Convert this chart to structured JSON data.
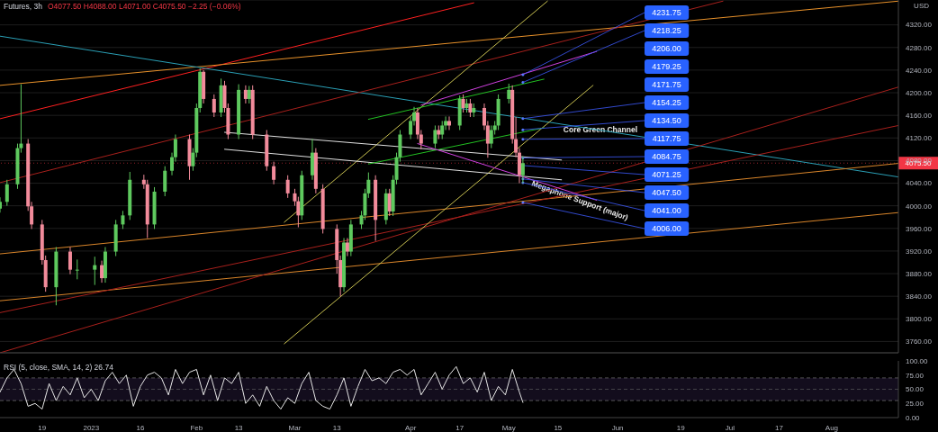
{
  "chart_data": [
    {
      "type": "candlestick",
      "title": "Futures, 3h",
      "subtitle": "O4077.50 H4088.00 L4071.00 C4075.50 −2.25 (−0.06%)",
      "ylabel": "USD",
      "tick_labels": "y",
      "grid": "y",
      "xlim": [
        "2022-12-07",
        "2023-08-20"
      ],
      "ylim": [
        3740,
        4364
      ],
      "yticks": [
        {
          "value": 3760,
          "label": "3760.00"
        },
        {
          "value": 3800,
          "label": "3800.00"
        },
        {
          "value": 3840,
          "label": "3840.00"
        },
        {
          "value": 3880,
          "label": "3880.00"
        },
        {
          "value": 3920,
          "label": "3920.00"
        },
        {
          "value": 3960,
          "label": "3960.00"
        },
        {
          "value": 4000,
          "label": "4000.00"
        },
        {
          "value": 4040,
          "label": "4040.00"
        },
        {
          "value": 4080,
          "label": "4080.00"
        },
        {
          "value": 4120,
          "label": "4120.00"
        },
        {
          "value": 4160,
          "label": "4160.00"
        },
        {
          "value": 4200,
          "label": "4200.00"
        },
        {
          "value": 4240,
          "label": "4240.00"
        },
        {
          "value": 4280,
          "label": "4280.00"
        },
        {
          "value": 4320,
          "label": "4320.00"
        }
      ],
      "x": [
        "2022-12-07",
        "2022-12-09",
        "2022-12-12",
        "2022-12-13",
        "2022-12-15",
        "2022-12-16",
        "2022-12-19",
        "2022-12-20",
        "2022-12-23",
        "2022-12-27",
        "2022-12-29",
        "2023-01-03",
        "2023-01-05",
        "2023-01-06",
        "2023-01-09",
        "2023-01-11",
        "2023-01-13",
        "2023-01-17",
        "2023-01-18",
        "2023-01-20",
        "2023-01-23",
        "2023-01-25",
        "2023-01-26",
        "2023-01-30",
        "2023-01-31",
        "2023-02-01",
        "2023-02-02",
        "2023-02-03",
        "2023-02-06",
        "2023-02-08",
        "2023-02-09",
        "2023-02-10",
        "2023-02-13",
        "2023-02-15",
        "2023-02-16",
        "2023-02-17",
        "2023-02-21",
        "2023-02-23",
        "2023-02-27",
        "2023-03-01",
        "2023-03-02",
        "2023-03-03",
        "2023-03-06",
        "2023-03-07",
        "2023-03-09",
        "2023-03-13",
        "2023-03-14",
        "2023-03-15",
        "2023-03-16",
        "2023-03-17",
        "2023-03-20",
        "2023-03-21",
        "2023-03-22",
        "2023-03-24",
        "2023-03-27",
        "2023-03-28",
        "2023-03-29",
        "2023-03-30",
        "2023-03-31",
        "2023-04-03",
        "2023-04-04",
        "2023-04-05",
        "2023-04-06",
        "2023-04-10",
        "2023-04-11",
        "2023-04-12",
        "2023-04-13",
        "2023-04-14",
        "2023-04-17",
        "2023-04-18",
        "2023-04-19",
        "2023-04-20",
        "2023-04-21",
        "2023-04-24",
        "2023-04-25",
        "2023-04-26",
        "2023-04-27",
        "2023-04-28",
        "2023-05-01",
        "2023-05-02",
        "2023-05-03",
        "2023-05-04",
        "2023-05-05"
      ],
      "ohlc": [
        [
          3995,
          4015,
          3988,
          4007
        ],
        [
          4007,
          4046,
          4000,
          4038
        ],
        [
          4038,
          4110,
          4030,
          4102
        ],
        [
          4102,
          4215,
          4094,
          4110
        ],
        [
          4110,
          4118,
          3991,
          3999
        ],
        [
          3999,
          4007,
          3959,
          3967
        ],
        [
          3967,
          3975,
          3896,
          3904
        ],
        [
          3904,
          3912,
          3848,
          3856
        ],
        [
          3856,
          3927,
          3824,
          3919
        ],
        [
          3919,
          3927,
          3879,
          3887
        ],
        [
          3887,
          3905,
          3870,
          3887
        ],
        [
          3887,
          3910,
          3860,
          3895
        ],
        [
          3895,
          3903,
          3864,
          3872
        ],
        [
          3872,
          3927,
          3864,
          3919
        ],
        [
          3919,
          3975,
          3911,
          3967
        ],
        [
          3967,
          3991,
          3959,
          3983
        ],
        [
          3983,
          4060,
          3975,
          4046
        ],
        [
          4046,
          4055,
          4030,
          4038
        ],
        [
          4038,
          4046,
          3943,
          3967
        ],
        [
          3967,
          4033,
          3959,
          4025
        ],
        [
          4025,
          4070,
          4017,
          4062
        ],
        [
          4062,
          4094,
          4054,
          4086
        ],
        [
          4086,
          4126,
          4078,
          4118
        ],
        [
          4118,
          4126,
          4046,
          4070
        ],
        [
          4070,
          4102,
          4062,
          4094
        ],
        [
          4094,
          4181,
          4086,
          4173
        ],
        [
          4173,
          4243,
          4165,
          4237
        ],
        [
          4237,
          4240,
          4181,
          4189
        ],
        [
          4189,
          4197,
          4157,
          4165
        ],
        [
          4165,
          4225,
          4157,
          4213
        ],
        [
          4213,
          4221,
          4165,
          4173
        ],
        [
          4173,
          4181,
          4118,
          4126
        ],
        [
          4126,
          4215,
          4118,
          4205
        ],
        [
          4205,
          4213,
          4181,
          4189
        ],
        [
          4189,
          4212,
          4181,
          4205
        ],
        [
          4205,
          4213,
          4118,
          4126
        ],
        [
          4126,
          4134,
          4062,
          4070
        ],
        [
          4070,
          4078,
          4038,
          4046
        ],
        [
          4046,
          4054,
          4014,
          4022
        ],
        [
          4022,
          4030,
          4000,
          4008
        ],
        [
          4008,
          4016,
          3962,
          3983
        ],
        [
          3983,
          4062,
          3975,
          4054
        ],
        [
          4054,
          4118,
          4046,
          4094
        ],
        [
          4094,
          4102,
          4022,
          4030
        ],
        [
          4030,
          4038,
          3951,
          3959
        ],
        [
          3959,
          3967,
          3880,
          3904
        ],
        [
          3904,
          3912,
          3840,
          3856
        ],
        [
          3856,
          3943,
          3848,
          3935
        ],
        [
          3935,
          3943,
          3911,
          3919
        ],
        [
          3919,
          3975,
          3911,
          3967
        ],
        [
          3967,
          3991,
          3959,
          3983
        ],
        [
          3983,
          4030,
          3975,
          4022
        ],
        [
          4022,
          4059,
          4014,
          4046
        ],
        [
          4046,
          4054,
          3938,
          3975
        ],
        [
          3975,
          4030,
          3967,
          4022
        ],
        [
          4022,
          4030,
          3982,
          3990
        ],
        [
          3990,
          4054,
          3982,
          4046
        ],
        [
          4046,
          4094,
          4038,
          4086
        ],
        [
          4086,
          4134,
          4078,
          4126
        ],
        [
          4126,
          4158,
          4118,
          4150
        ],
        [
          4150,
          4175,
          4142,
          4165
        ],
        [
          4165,
          4173,
          4118,
          4126
        ],
        [
          4126,
          4134,
          4100,
          4110
        ],
        [
          4110,
          4142,
          4102,
          4134
        ],
        [
          4134,
          4142,
          4118,
          4126
        ],
        [
          4126,
          4150,
          4118,
          4142
        ],
        [
          4142,
          4158,
          4134,
          4150
        ],
        [
          4150,
          4158,
          4134,
          4142
        ],
        [
          4142,
          4195,
          4134,
          4189
        ],
        [
          4189,
          4197,
          4165,
          4173
        ],
        [
          4173,
          4189,
          4165,
          4181
        ],
        [
          4181,
          4189,
          4157,
          4165
        ],
        [
          4165,
          4181,
          4157,
          4173
        ],
        [
          4173,
          4181,
          4134,
          4142
        ],
        [
          4142,
          4150,
          4085,
          4110
        ],
        [
          4110,
          4142,
          4102,
          4134
        ],
        [
          4134,
          4150,
          4126,
          4142
        ],
        [
          4142,
          4197,
          4134,
          4189
        ],
        [
          4189,
          4216,
          4181,
          4205
        ],
        [
          4205,
          4213,
          4110,
          4118
        ],
        [
          4118,
          4157,
          4086,
          4094
        ],
        [
          4094,
          4102,
          4040,
          4054
        ],
        [
          4054,
          4088,
          4040,
          4075.5
        ]
      ],
      "colors": [
        "#5ec95e",
        "#5ec95e",
        "#5ec95e",
        "#5ec95e",
        "#f28b9b",
        "#f28b9b",
        "#f28b9b",
        "#f28b9b",
        "#5ec95e",
        "#f28b9b",
        "#5ec95e",
        "#5ec95e",
        "#f28b9b",
        "#5ec95e",
        "#5ec95e",
        "#5ec95e",
        "#5ec95e",
        "#f28b9b",
        "#f28b9b",
        "#5ec95e",
        "#5ec95e",
        "#5ec95e",
        "#5ec95e",
        "#f28b9b",
        "#5ec95e",
        "#5ec95e",
        "#5ec95e",
        "#f28b9b",
        "#f28b9b",
        "#5ec95e",
        "#f28b9b",
        "#f28b9b",
        "#5ec95e",
        "#f28b9b",
        "#5ec95e",
        "#f28b9b",
        "#f28b9b",
        "#f28b9b",
        "#f28b9b",
        "#f28b9b",
        "#f28b9b",
        "#5ec95e",
        "#5ec95e",
        "#f28b9b",
        "#f28b9b",
        "#f28b9b",
        "#f28b9b",
        "#5ec95e",
        "#f28b9b",
        "#5ec95e",
        "#5ec95e",
        "#5ec95e",
        "#5ec95e",
        "#f28b9b",
        "#5ec95e",
        "#f28b9b",
        "#5ec95e",
        "#5ec95e",
        "#5ec95e",
        "#5ec95e",
        "#5ec95e",
        "#f28b9b",
        "#f28b9b",
        "#5ec95e",
        "#f28b9b",
        "#5ec95e",
        "#5ec95e",
        "#f28b9b",
        "#5ec95e",
        "#f28b9b",
        "#5ec95e",
        "#f28b9b",
        "#5ec95e",
        "#f28b9b",
        "#f28b9b",
        "#5ec95e",
        "#5ec95e",
        "#5ec95e",
        "#5ec95e",
        "#f28b9b",
        "#f28b9b",
        "#f28b9b",
        "#5ec95e"
      ],
      "series": [
        {
          "type": "line",
          "color": "#ff2020",
          "x": [
            "2022-12-07",
            "2023-04-21"
          ],
          "values": [
            4154,
            4359
          ]
        },
        {
          "type": "line",
          "color": "#e8912a",
          "x": [
            "2022-12-07",
            "2023-08-20"
          ],
          "values": [
            4213,
            4362
          ]
        },
        {
          "type": "line",
          "color": "#2a9fb5",
          "x": [
            "2022-12-07",
            "2023-08-20"
          ],
          "values": [
            4300,
            4051
          ]
        },
        {
          "type": "line",
          "color": "#d9852a",
          "x": [
            "2022-12-07",
            "2023-08-20"
          ],
          "values": [
            3915,
            4075
          ]
        },
        {
          "type": "line",
          "color": "#d9852a",
          "x": [
            "2022-12-07",
            "2023-08-20"
          ],
          "values": [
            3832,
            3988
          ]
        },
        {
          "type": "line",
          "color": "#a8201c",
          "x": [
            "2022-12-07",
            "2023-07-01"
          ],
          "values": [
            4041,
            4362
          ]
        },
        {
          "type": "line",
          "color": "#a8201c",
          "x": [
            "2022-12-07",
            "2023-08-20"
          ],
          "values": [
            3811,
            4142
          ]
        },
        {
          "type": "line",
          "color": "#a8201c",
          "x": [
            "2022-12-07",
            "2023-08-20"
          ],
          "values": [
            3740,
            4210
          ]
        },
        {
          "type": "line",
          "color": "#c8c050",
          "x": [
            "2023-02-26",
            "2023-05-25"
          ],
          "values": [
            3756,
            4213
          ]
        },
        {
          "type": "line",
          "color": "#c8c050",
          "x": [
            "2023-02-26",
            "2023-05-12"
          ],
          "values": [
            3971,
            4362
          ]
        },
        {
          "type": "line",
          "color": "#e0e0e0",
          "x": [
            "2023-02-09",
            "2023-05-16"
          ],
          "values": [
            4130,
            4081
          ]
        },
        {
          "type": "line",
          "color": "#e0e0e0",
          "x": [
            "2023-02-09",
            "2023-05-16"
          ],
          "values": [
            4100,
            4046
          ]
        },
        {
          "type": "line",
          "color": "#22c022",
          "x": [
            "2023-03-22",
            "2023-05-11"
          ],
          "values": [
            4153,
            4224
          ]
        },
        {
          "type": "line",
          "color": "#22c022",
          "x": [
            "2023-03-22",
            "2023-05-11"
          ],
          "values": [
            4074,
            4138
          ]
        },
        {
          "type": "line",
          "color": "#d040e0",
          "x": [
            "2023-04-06",
            "2023-05-26"
          ],
          "values": [
            4178,
            4273
          ]
        },
        {
          "type": "line",
          "color": "#d040e0",
          "x": [
            "2023-04-05",
            "2023-05-26"
          ],
          "values": [
            4110,
            4010
          ]
        }
      ],
      "ref_lines": [
        {
          "axis": "y",
          "value": 4075.5,
          "label": "4075.50",
          "color": "#f23645",
          "line_style": "dotted"
        }
      ],
      "annotations": [
        {
          "text": "4231.75",
          "x": "2023-05-05",
          "y": 4231.75
        },
        {
          "text": "4218.25",
          "x": "2023-05-05",
          "y": 4218.25
        },
        "4206.00",
        "4179.25",
        "4171.75",
        {
          "text": "4154.25",
          "x": "2023-05-05",
          "y": 4154.25
        },
        {
          "text": "4134.50",
          "x": "2023-05-05",
          "y": 4134.5
        },
        {
          "text": "4117.75",
          "x": "2023-05-05",
          "y": 4117.75
        },
        {
          "text": "4084.75",
          "x": "2023-05-05",
          "y": 4084.75
        },
        {
          "text": "4071.25",
          "x": "2023-05-05",
          "y": 4071.25
        },
        {
          "text": "4047.50",
          "x": "2023-05-05",
          "y": 4047.5
        },
        {
          "text": "4041.00",
          "x": "2023-05-05",
          "y": 4041
        },
        {
          "text": "4006.00",
          "x": "2023-05-05",
          "y": 4006
        },
        "Core Green Channel",
        "Megaphone Support (major)"
      ]
    },
    {
      "type": "line",
      "title": "RSI (5, close, SMA, 14, 2) 26.74",
      "color": "#e6e6e6",
      "xlim": [
        "2022-12-07",
        "2023-08-20"
      ],
      "ylim": [
        0,
        100
      ],
      "yticks": [
        {
          "value": 0,
          "label": "0.00"
        },
        {
          "value": 25,
          "label": "25.00"
        },
        {
          "value": 50,
          "label": "50.00"
        },
        {
          "value": 75,
          "label": "75.00"
        },
        {
          "value": 100,
          "label": "100.00"
        }
      ],
      "xticks": [
        {
          "value": "2022-12-19",
          "label": "19"
        },
        {
          "value": "2023-01-02",
          "label": "2023"
        },
        {
          "value": "2023-01-16",
          "label": "16"
        },
        {
          "value": "2023-02-01",
          "label": "Feb"
        },
        {
          "value": "2023-02-13",
          "label": "13"
        },
        {
          "value": "2023-03-01",
          "label": "Mar"
        },
        {
          "value": "2023-03-13",
          "label": "13"
        },
        {
          "value": "2023-04-03",
          "label": "Apr"
        },
        {
          "value": "2023-04-17",
          "label": "17"
        },
        {
          "value": "2023-05-01",
          "label": "May"
        },
        {
          "value": "2023-05-15",
          "label": "15"
        },
        {
          "value": "2023-06-01",
          "label": "Jun"
        },
        {
          "value": "2023-06-19",
          "label": "19"
        },
        {
          "value": "2023-07-03",
          "label": "Jul"
        },
        {
          "value": "2023-07-17",
          "label": "17"
        },
        {
          "value": "2023-08-01",
          "label": "Aug"
        }
      ],
      "x": [
        "2022-12-07",
        "2022-12-09",
        "2022-12-11",
        "2022-12-13",
        "2022-12-15",
        "2022-12-17",
        "2022-12-19",
        "2022-12-21",
        "2022-12-23",
        "2022-12-25",
        "2022-12-27",
        "2022-12-29",
        "2022-12-31",
        "2023-01-02",
        "2023-01-04",
        "2023-01-06",
        "2023-01-08",
        "2023-01-10",
        "2023-01-12",
        "2023-01-14",
        "2023-01-16",
        "2023-01-18",
        "2023-01-20",
        "2023-01-22",
        "2023-01-24",
        "2023-01-26",
        "2023-01-28",
        "2023-01-30",
        "2023-02-01",
        "2023-02-03",
        "2023-02-05",
        "2023-02-07",
        "2023-02-09",
        "2023-02-11",
        "2023-02-13",
        "2023-02-15",
        "2023-02-17",
        "2023-02-19",
        "2023-02-21",
        "2023-02-23",
        "2023-02-25",
        "2023-02-27",
        "2023-03-01",
        "2023-03-03",
        "2023-03-05",
        "2023-03-07",
        "2023-03-09",
        "2023-03-11",
        "2023-03-13",
        "2023-03-15",
        "2023-03-17",
        "2023-03-19",
        "2023-03-21",
        "2023-03-23",
        "2023-03-25",
        "2023-03-27",
        "2023-03-29",
        "2023-03-31",
        "2023-04-02",
        "2023-04-04",
        "2023-04-06",
        "2023-04-08",
        "2023-04-10",
        "2023-04-12",
        "2023-04-14",
        "2023-04-16",
        "2023-04-18",
        "2023-04-20",
        "2023-04-22",
        "2023-04-24",
        "2023-04-26",
        "2023-04-28",
        "2023-04-30",
        "2023-05-02",
        "2023-05-04",
        "2023-05-05"
      ],
      "values": [
        45,
        70,
        85,
        60,
        20,
        25,
        15,
        60,
        30,
        55,
        40,
        70,
        35,
        50,
        30,
        65,
        80,
        60,
        75,
        20,
        55,
        75,
        80,
        70,
        40,
        85,
        60,
        80,
        85,
        40,
        75,
        30,
        70,
        60,
        80,
        25,
        40,
        20,
        55,
        30,
        15,
        35,
        25,
        60,
        80,
        30,
        20,
        15,
        40,
        70,
        20,
        55,
        85,
        65,
        70,
        60,
        80,
        85,
        75,
        85,
        40,
        60,
        80,
        50,
        75,
        90,
        60,
        70,
        45,
        80,
        30,
        55,
        40,
        85,
        45,
        26.74
      ],
      "bands": [
        {
          "axis": "y",
          "from": 30,
          "to": 70,
          "color": "#7e57c2"
        }
      ],
      "ref_lines": [
        {
          "axis": "y",
          "value": 70,
          "color": "#888888",
          "line_style": "dashed"
        },
        {
          "axis": "y",
          "value": 50,
          "color": "#666666",
          "line_style": "dashed"
        },
        {
          "axis": "y",
          "value": 30,
          "color": "#888888",
          "line_style": "dashed"
        }
      ]
    }
  ]
}
